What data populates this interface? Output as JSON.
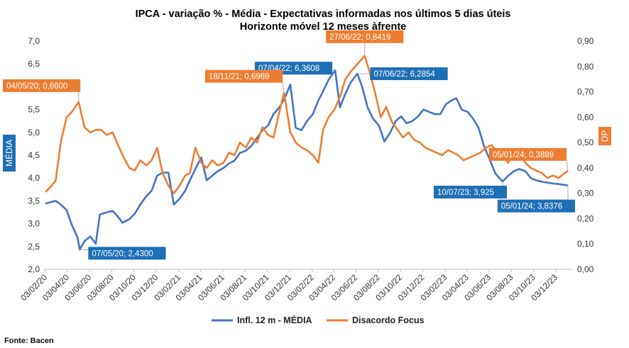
{
  "chart_data": {
    "type": "line",
    "title": "IPCA - variação % - Média - Expectativas informadas nos últimos 5 dias úteis",
    "subtitle": "Horizonte móvel 12 meses àfrente",
    "left_axis_label": "MÉDIA",
    "right_axis_label": "DP",
    "y_left_ticks": [
      "2,0",
      "2,5",
      "3,0",
      "3,5",
      "4,0",
      "4,5",
      "5,0",
      "5,5",
      "6,0",
      "6,5",
      "7,0"
    ],
    "y_right_ticks": [
      "0,00",
      "0,10",
      "0,20",
      "0,30",
      "0,40",
      "0,50",
      "0,60",
      "0,70",
      "0,80",
      "0,90"
    ],
    "x_ticks": [
      "03/02/20",
      "03/04/20",
      "03/06/20",
      "03/08/20",
      "03/10/20",
      "03/12/20",
      "03/02/21",
      "03/04/21",
      "03/06/21",
      "03/08/21",
      "03/10/21",
      "03/12/21",
      "03/02/22",
      "03/04/22",
      "03/06/22",
      "03/08/22",
      "03/10/22",
      "03/12/22",
      "03/02/23",
      "03/04/23",
      "03/06/23",
      "03/08/23",
      "03/10/23",
      "03/12/23"
    ],
    "y_left_range": [
      2.0,
      7.0
    ],
    "y_right_range": [
      0.0,
      0.9
    ],
    "grid": false,
    "legend_position": "bottom",
    "series": [
      {
        "name": "Infl. 12 m - MÉDIA",
        "axis": "left",
        "color": "#4472c4",
        "points": [
          [
            "2020-02-03",
            3.44
          ],
          [
            "2020-02-17",
            3.47
          ],
          [
            "2020-03-02",
            3.5
          ],
          [
            "2020-03-16",
            3.42
          ],
          [
            "2020-04-01",
            3.3
          ],
          [
            "2020-04-15",
            2.98
          ],
          [
            "2020-05-01",
            2.7
          ],
          [
            "2020-05-07",
            2.43
          ],
          [
            "2020-05-20",
            2.62
          ],
          [
            "2020-06-05",
            2.72
          ],
          [
            "2020-06-20",
            2.56
          ],
          [
            "2020-07-01",
            3.2
          ],
          [
            "2020-07-20",
            3.25
          ],
          [
            "2020-08-05",
            3.28
          ],
          [
            "2020-08-20",
            3.15
          ],
          [
            "2020-09-01",
            3.02
          ],
          [
            "2020-09-20",
            3.1
          ],
          [
            "2020-10-05",
            3.22
          ],
          [
            "2020-10-20",
            3.42
          ],
          [
            "2020-11-05",
            3.6
          ],
          [
            "2020-11-20",
            3.72
          ],
          [
            "2020-12-05",
            4.05
          ],
          [
            "2020-12-20",
            4.12
          ],
          [
            "2021-01-05",
            4.12
          ],
          [
            "2021-01-20",
            3.42
          ],
          [
            "2021-02-05",
            3.55
          ],
          [
            "2021-02-20",
            3.72
          ],
          [
            "2021-03-05",
            3.95
          ],
          [
            "2021-03-20",
            4.2
          ],
          [
            "2021-04-05",
            4.45
          ],
          [
            "2021-04-20",
            3.95
          ],
          [
            "2021-05-05",
            4.05
          ],
          [
            "2021-05-20",
            4.15
          ],
          [
            "2021-06-05",
            4.22
          ],
          [
            "2021-06-20",
            4.32
          ],
          [
            "2021-07-05",
            4.38
          ],
          [
            "2021-07-20",
            4.55
          ],
          [
            "2021-08-05",
            4.6
          ],
          [
            "2021-08-20",
            4.7
          ],
          [
            "2021-09-05",
            4.88
          ],
          [
            "2021-09-20",
            5.05
          ],
          [
            "2021-10-05",
            5.15
          ],
          [
            "2021-10-20",
            5.4
          ],
          [
            "2021-11-05",
            5.55
          ],
          [
            "2021-11-20",
            5.75
          ],
          [
            "2021-12-05",
            6.05
          ],
          [
            "2021-12-20",
            5.1
          ],
          [
            "2022-01-05",
            5.05
          ],
          [
            "2022-01-20",
            5.25
          ],
          [
            "2022-02-05",
            5.4
          ],
          [
            "2022-02-20",
            5.7
          ],
          [
            "2022-03-05",
            5.9
          ],
          [
            "2022-03-20",
            6.15
          ],
          [
            "2022-04-07",
            6.3608
          ],
          [
            "2022-04-20",
            5.55
          ],
          [
            "2022-05-05",
            5.85
          ],
          [
            "2022-05-20",
            6.1
          ],
          [
            "2022-06-07",
            6.2854
          ],
          [
            "2022-06-20",
            6.0
          ],
          [
            "2022-07-05",
            5.55
          ],
          [
            "2022-07-20",
            5.3
          ],
          [
            "2022-08-05",
            5.15
          ],
          [
            "2022-08-20",
            4.8
          ],
          [
            "2022-09-05",
            5.0
          ],
          [
            "2022-09-20",
            5.25
          ],
          [
            "2022-10-05",
            5.35
          ],
          [
            "2022-10-20",
            5.2
          ],
          [
            "2022-11-05",
            5.25
          ],
          [
            "2022-11-20",
            5.35
          ],
          [
            "2022-12-05",
            5.5
          ],
          [
            "2022-12-20",
            5.45
          ],
          [
            "2023-01-05",
            5.4
          ],
          [
            "2023-01-20",
            5.4
          ],
          [
            "2023-02-05",
            5.62
          ],
          [
            "2023-02-20",
            5.7
          ],
          [
            "2023-03-05",
            5.75
          ],
          [
            "2023-03-20",
            5.5
          ],
          [
            "2023-04-05",
            5.45
          ],
          [
            "2023-04-20",
            5.3
          ],
          [
            "2023-05-05",
            5.1
          ],
          [
            "2023-05-20",
            4.7
          ],
          [
            "2023-06-05",
            4.4
          ],
          [
            "2023-06-20",
            4.1
          ],
          [
            "2023-07-10",
            3.925
          ],
          [
            "2023-07-25",
            4.05
          ],
          [
            "2023-08-10",
            4.15
          ],
          [
            "2023-08-25",
            4.2
          ],
          [
            "2023-09-10",
            4.15
          ],
          [
            "2023-09-25",
            4.0
          ],
          [
            "2023-10-10",
            3.95
          ],
          [
            "2023-10-25",
            3.92
          ],
          [
            "2023-11-10",
            3.9
          ],
          [
            "2023-11-25",
            3.88
          ],
          [
            "2023-12-10",
            3.87
          ],
          [
            "2024-01-05",
            3.8376
          ]
        ]
      },
      {
        "name": "Disacordo Focus",
        "axis": "right",
        "color": "#ed7d31",
        "points": [
          [
            "2020-02-03",
            0.305
          ],
          [
            "2020-02-17",
            0.325
          ],
          [
            "2020-03-02",
            0.35
          ],
          [
            "2020-03-16",
            0.5
          ],
          [
            "2020-04-01",
            0.6
          ],
          [
            "2020-04-15",
            0.62
          ],
          [
            "2020-05-04",
            0.66
          ],
          [
            "2020-05-20",
            0.56
          ],
          [
            "2020-06-05",
            0.54
          ],
          [
            "2020-06-20",
            0.55
          ],
          [
            "2020-07-05",
            0.55
          ],
          [
            "2020-07-20",
            0.53
          ],
          [
            "2020-08-05",
            0.54
          ],
          [
            "2020-08-20",
            0.49
          ],
          [
            "2020-09-05",
            0.44
          ],
          [
            "2020-09-20",
            0.4
          ],
          [
            "2020-10-05",
            0.39
          ],
          [
            "2020-10-20",
            0.43
          ],
          [
            "2020-11-05",
            0.41
          ],
          [
            "2020-11-20",
            0.43
          ],
          [
            "2020-12-05",
            0.48
          ],
          [
            "2020-12-20",
            0.38
          ],
          [
            "2021-01-05",
            0.33
          ],
          [
            "2021-01-20",
            0.3
          ],
          [
            "2021-02-05",
            0.33
          ],
          [
            "2021-02-20",
            0.37
          ],
          [
            "2021-03-05",
            0.38
          ],
          [
            "2021-03-20",
            0.48
          ],
          [
            "2021-04-05",
            0.42
          ],
          [
            "2021-04-20",
            0.4
          ],
          [
            "2021-05-05",
            0.43
          ],
          [
            "2021-05-20",
            0.41
          ],
          [
            "2021-06-05",
            0.42
          ],
          [
            "2021-06-20",
            0.46
          ],
          [
            "2021-07-05",
            0.45
          ],
          [
            "2021-07-20",
            0.5
          ],
          [
            "2021-08-05",
            0.48
          ],
          [
            "2021-08-20",
            0.52
          ],
          [
            "2021-09-05",
            0.5
          ],
          [
            "2021-09-20",
            0.56
          ],
          [
            "2021-10-05",
            0.53
          ],
          [
            "2021-10-20",
            0.52
          ],
          [
            "2021-11-05",
            0.62
          ],
          [
            "2021-11-18",
            0.6969
          ],
          [
            "2021-12-05",
            0.54
          ],
          [
            "2021-12-20",
            0.5
          ],
          [
            "2022-01-05",
            0.48
          ],
          [
            "2022-01-20",
            0.47
          ],
          [
            "2022-02-05",
            0.45
          ],
          [
            "2022-02-20",
            0.42
          ],
          [
            "2022-03-05",
            0.55
          ],
          [
            "2022-03-20",
            0.6
          ],
          [
            "2022-04-05",
            0.63
          ],
          [
            "2022-04-20",
            0.68
          ],
          [
            "2022-05-05",
            0.75
          ],
          [
            "2022-05-20",
            0.78
          ],
          [
            "2022-06-27",
            0.8419
          ],
          [
            "2022-07-10",
            0.78
          ],
          [
            "2022-07-25",
            0.7
          ],
          [
            "2022-08-10",
            0.6
          ],
          [
            "2022-08-25",
            0.64
          ],
          [
            "2022-09-10",
            0.58
          ],
          [
            "2022-09-25",
            0.55
          ],
          [
            "2022-10-10",
            0.52
          ],
          [
            "2022-10-25",
            0.54
          ],
          [
            "2022-11-10",
            0.51
          ],
          [
            "2022-11-25",
            0.5
          ],
          [
            "2022-12-10",
            0.48
          ],
          [
            "2022-12-25",
            0.47
          ],
          [
            "2023-01-10",
            0.46
          ],
          [
            "2023-01-25",
            0.45
          ],
          [
            "2023-02-10",
            0.47
          ],
          [
            "2023-02-25",
            0.46
          ],
          [
            "2023-03-10",
            0.45
          ],
          [
            "2023-03-25",
            0.43
          ],
          [
            "2023-04-10",
            0.44
          ],
          [
            "2023-04-25",
            0.45
          ],
          [
            "2023-05-10",
            0.46
          ],
          [
            "2023-05-25",
            0.48
          ],
          [
            "2023-06-10",
            0.49
          ],
          [
            "2023-06-25",
            0.46
          ],
          [
            "2023-07-10",
            0.45
          ],
          [
            "2023-07-25",
            0.42
          ],
          [
            "2023-08-10",
            0.45
          ],
          [
            "2023-08-25",
            0.46
          ],
          [
            "2023-09-10",
            0.42
          ],
          [
            "2023-09-25",
            0.4
          ],
          [
            "2023-10-10",
            0.39
          ],
          [
            "2023-10-25",
            0.38
          ],
          [
            "2023-11-10",
            0.36
          ],
          [
            "2023-11-25",
            0.37
          ],
          [
            "2023-12-10",
            0.36
          ],
          [
            "2024-01-05",
            0.3889
          ]
        ]
      }
    ],
    "annotations": [
      {
        "series": "left",
        "date": "2020-05-07",
        "value": 2.43,
        "label": "07/05/20; 2,4300",
        "color": "#1e6fb5",
        "place": "right-below"
      },
      {
        "series": "left",
        "date": "2022-04-07",
        "value": 6.3608,
        "label": "07/04/22; 6,3608",
        "color": "#1e6fb5",
        "place": "left"
      },
      {
        "series": "left",
        "date": "2022-06-07",
        "value": 6.2854,
        "label": "07/06/22; 6,2854",
        "color": "#1e6fb5",
        "place": "right"
      },
      {
        "series": "left",
        "date": "2023-07-10",
        "value": 3.925,
        "label": "10/07/23; 3,925",
        "color": "#1e6fb5",
        "place": "left-below"
      },
      {
        "series": "left",
        "date": "2024-01-05",
        "value": 3.8376,
        "label": "05/01/24; 3,8376",
        "color": "#1e6fb5",
        "place": "below-left"
      },
      {
        "series": "right",
        "date": "2020-05-04",
        "value": 0.66,
        "label": "04/05/20; 0,6600",
        "color": "#ed7d31",
        "place": "above-left"
      },
      {
        "series": "right",
        "date": "2021-11-18",
        "value": 0.6969,
        "label": "18/11/21; 0,6969",
        "color": "#ed7d31",
        "place": "above-left"
      },
      {
        "series": "right",
        "date": "2022-06-27",
        "value": 0.8419,
        "label": "27/06/22; 0,8419",
        "color": "#ed7d31",
        "place": "above"
      },
      {
        "series": "right",
        "date": "2024-01-05",
        "value": 0.3889,
        "label": "05/01/24; 0,3889",
        "color": "#ed7d31",
        "place": "above-left"
      }
    ]
  },
  "source": "Fonte: Bacen"
}
